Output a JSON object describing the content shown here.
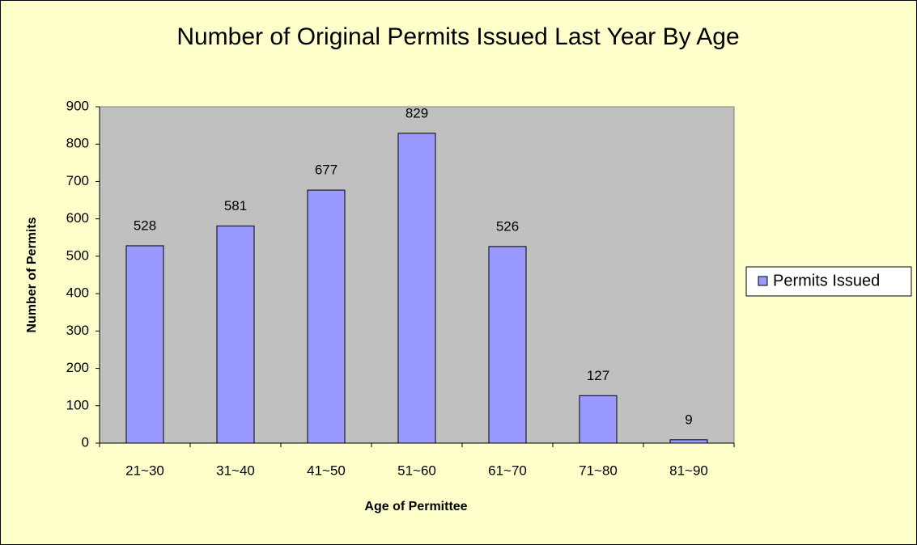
{
  "chart_data": {
    "type": "bar",
    "title": "Number of Original Permits Issued Last Year By Age",
    "x_label": "Age of Permittee",
    "y_label": "Number of Permits",
    "categories": [
      "21~30",
      "31~40",
      "41~50",
      "51~60",
      "61~70",
      "71~80",
      "81~90"
    ],
    "series": [
      {
        "name": "Permits Issued",
        "color": "#9999ff",
        "values": [
          528,
          581,
          677,
          829,
          526,
          127,
          9
        ]
      }
    ],
    "ylim": [
      0,
      900
    ],
    "yticks": [
      0,
      100,
      200,
      300,
      400,
      500,
      600,
      700,
      800,
      900
    ],
    "grid": false,
    "legend": "right"
  }
}
